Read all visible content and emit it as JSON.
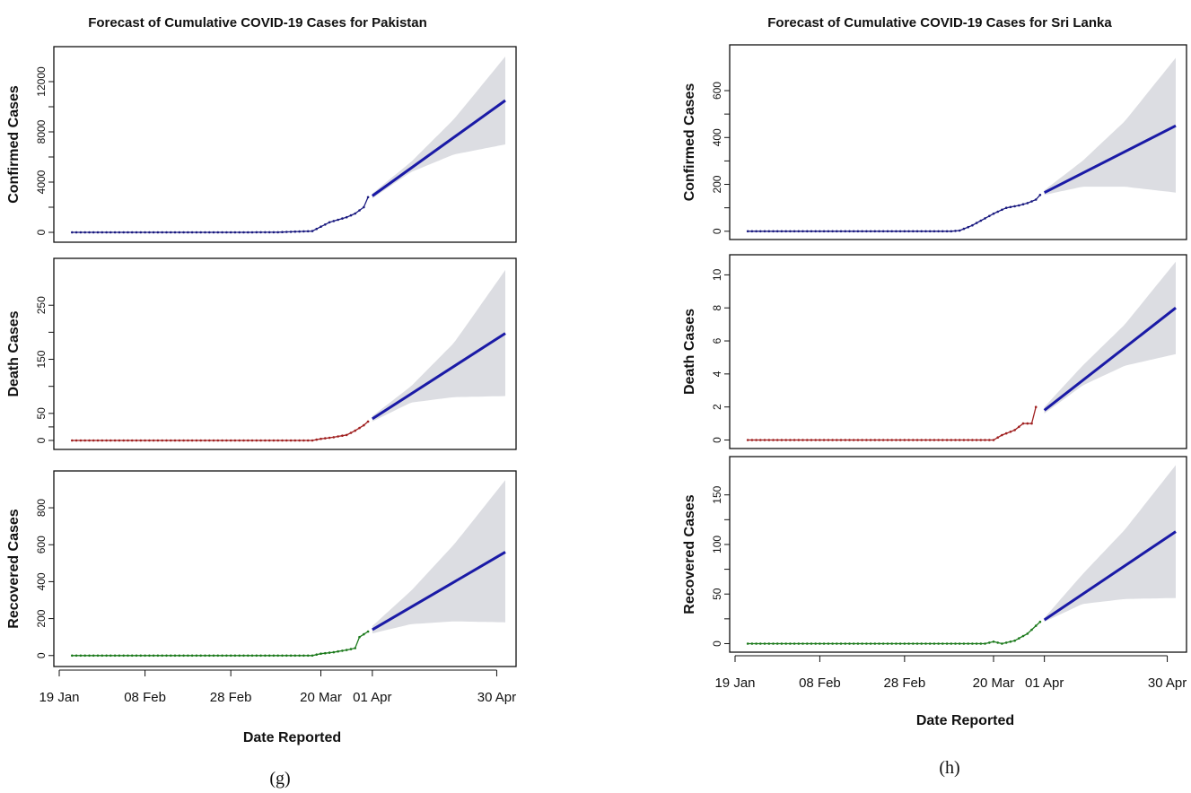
{
  "captions": [
    "(g)",
    "(h)"
  ],
  "chart_data": [
    {
      "type": "line",
      "title": "Forecast of Cumulative COVID-19 Cases for Pakistan",
      "xlabel": "Date Reported",
      "x_ticks": [
        "19 Jan",
        "08 Feb",
        "28 Feb",
        "20 Mar",
        "01 Apr",
        "30 Apr"
      ],
      "xlim": [
        "2020-01-19",
        "2020-05-02"
      ],
      "forecast_start": "2020-04-01",
      "panels": [
        {
          "ylabel": "Confirmed Cases",
          "color": "#1a1a80",
          "forecast_color": "#1a1aa6",
          "band_color": "#dcdde2",
          "ylim": [
            -500,
            14500
          ],
          "y_ticks": [
            0,
            4000,
            8000,
            12000
          ],
          "observed": {
            "x": [
              "2020-01-22",
              "2020-03-01",
              "2020-03-10",
              "2020-03-18",
              "2020-03-20",
              "2020-03-22",
              "2020-03-24",
              "2020-03-26",
              "2020-03-28",
              "2020-03-30",
              "2020-03-31"
            ],
            "y": [
              0,
              0,
              10,
              100,
              450,
              800,
              1000,
              1200,
              1500,
              2000,
              2800
            ]
          },
          "forecast": {
            "x": [
              "2020-04-01",
              "2020-05-02"
            ],
            "y": [
              2900,
              10500
            ]
          },
          "band_upper": {
            "x": [
              "2020-04-01",
              "2020-04-10",
              "2020-04-20",
              "2020-05-02"
            ],
            "y": [
              3100,
              5600,
              9000,
              14000
            ]
          },
          "band_lower": {
            "x": [
              "2020-04-01",
              "2020-04-10",
              "2020-04-20",
              "2020-05-02"
            ],
            "y": [
              2700,
              4800,
              6200,
              7000
            ]
          }
        },
        {
          "ylabel": "Death Cases",
          "color": "#a02020",
          "forecast_color": "#1a1aa6",
          "band_color": "#dcdde2",
          "ylim": [
            -10,
            330
          ],
          "y_ticks": [
            0,
            50,
            150,
            250
          ],
          "observed": {
            "x": [
              "2020-01-22",
              "2020-03-18",
              "2020-03-20",
              "2020-03-23",
              "2020-03-26",
              "2020-03-28",
              "2020-03-30",
              "2020-03-31"
            ],
            "y": [
              0,
              0,
              3,
              6,
              10,
              18,
              28,
              35
            ]
          },
          "forecast": {
            "x": [
              "2020-04-01",
              "2020-05-02"
            ],
            "y": [
              40,
              198
            ]
          },
          "band_upper": {
            "x": [
              "2020-04-01",
              "2020-04-10",
              "2020-04-20",
              "2020-05-02"
            ],
            "y": [
              45,
              100,
              180,
              315
            ]
          },
          "band_lower": {
            "x": [
              "2020-04-01",
              "2020-04-10",
              "2020-04-20",
              "2020-05-02"
            ],
            "y": [
              35,
              70,
              80,
              82
            ]
          }
        },
        {
          "ylabel": "Recovered Cases",
          "color": "#1c7a1c",
          "forecast_color": "#1a1aa6",
          "band_color": "#dcdde2",
          "ylim": [
            -40,
            980
          ],
          "y_ticks": [
            0,
            200,
            400,
            600,
            800
          ],
          "observed": {
            "x": [
              "2020-01-22",
              "2020-03-18",
              "2020-03-20",
              "2020-03-23",
              "2020-03-26",
              "2020-03-28",
              "2020-03-29",
              "2020-03-31"
            ],
            "y": [
              0,
              0,
              10,
              18,
              30,
              40,
              100,
              130
            ]
          },
          "forecast": {
            "x": [
              "2020-04-01",
              "2020-05-02"
            ],
            "y": [
              140,
              560
            ]
          },
          "band_upper": {
            "x": [
              "2020-04-01",
              "2020-04-10",
              "2020-04-20",
              "2020-05-02"
            ],
            "y": [
              160,
              350,
              600,
              950
            ]
          },
          "band_lower": {
            "x": [
              "2020-04-01",
              "2020-04-10",
              "2020-04-20",
              "2020-05-02"
            ],
            "y": [
              120,
              170,
              185,
              180
            ]
          }
        }
      ]
    },
    {
      "type": "line",
      "title": "Forecast of Cumulative COVID-19 Cases for Sri Lanka",
      "xlabel": "Date Reported",
      "x_ticks": [
        "19 Jan",
        "08 Feb",
        "28 Feb",
        "20 Mar",
        "01 Apr",
        "30 Apr"
      ],
      "xlim": [
        "2020-01-19",
        "2020-05-02"
      ],
      "forecast_start": "2020-04-01",
      "panels": [
        {
          "ylabel": "Confirmed Cases",
          "color": "#1a1a80",
          "forecast_color": "#1a1aa6",
          "band_color": "#dcdde2",
          "ylim": [
            -20,
            780
          ],
          "y_ticks": [
            0,
            200,
            400,
            600
          ],
          "observed": {
            "x": [
              "2020-01-22",
              "2020-03-10",
              "2020-03-12",
              "2020-03-15",
              "2020-03-18",
              "2020-03-20",
              "2020-03-23",
              "2020-03-26",
              "2020-03-28",
              "2020-03-30",
              "2020-03-31"
            ],
            "y": [
              0,
              0,
              3,
              25,
              55,
              75,
              100,
              110,
              120,
              135,
              155
            ]
          },
          "forecast": {
            "x": [
              "2020-04-01",
              "2020-05-02"
            ],
            "y": [
              165,
              450
            ]
          },
          "band_upper": {
            "x": [
              "2020-04-01",
              "2020-04-10",
              "2020-04-20",
              "2020-05-02"
            ],
            "y": [
              175,
              300,
              470,
              740
            ]
          },
          "band_lower": {
            "x": [
              "2020-04-01",
              "2020-04-10",
              "2020-04-20",
              "2020-05-02"
            ],
            "y": [
              155,
              190,
              190,
              165
            ]
          }
        },
        {
          "ylabel": "Death Cases",
          "color": "#a02020",
          "forecast_color": "#1a1aa6",
          "band_color": "#dcdde2",
          "ylim": [
            -0.3,
            11
          ],
          "y_ticks": [
            0,
            2,
            4,
            6,
            8,
            10
          ],
          "observed": {
            "x": [
              "2020-01-22",
              "2020-03-20",
              "2020-03-22",
              "2020-03-25",
              "2020-03-27",
              "2020-03-28",
              "2020-03-29",
              "2020-03-30"
            ],
            "y": [
              0,
              0,
              0.3,
              0.6,
              1,
              1,
              1,
              2
            ]
          },
          "forecast": {
            "x": [
              "2020-04-01",
              "2020-05-02"
            ],
            "y": [
              1.8,
              8
            ]
          },
          "band_upper": {
            "x": [
              "2020-04-01",
              "2020-04-10",
              "2020-04-20",
              "2020-05-02"
            ],
            "y": [
              2.0,
              4.5,
              7,
              10.8
            ]
          },
          "band_lower": {
            "x": [
              "2020-04-01",
              "2020-04-10",
              "2020-04-20",
              "2020-05-02"
            ],
            "y": [
              1.6,
              3.3,
              4.5,
              5.2
            ]
          }
        },
        {
          "ylabel": "Recovered Cases",
          "color": "#1c7a1c",
          "forecast_color": "#1a1aa6",
          "band_color": "#dcdde2",
          "ylim": [
            -5,
            185
          ],
          "y_ticks": [
            0,
            50,
            100,
            150
          ],
          "observed": {
            "x": [
              "2020-01-22",
              "2020-03-18",
              "2020-03-20",
              "2020-03-22",
              "2020-03-25",
              "2020-03-28",
              "2020-03-31"
            ],
            "y": [
              0,
              0,
              2,
              0,
              3,
              10,
              22
            ]
          },
          "forecast": {
            "x": [
              "2020-04-01",
              "2020-05-02"
            ],
            "y": [
              24,
              113
            ]
          },
          "band_upper": {
            "x": [
              "2020-04-01",
              "2020-04-10",
              "2020-04-20",
              "2020-05-02"
            ],
            "y": [
              26,
              70,
              115,
              180
            ]
          },
          "band_lower": {
            "x": [
              "2020-04-01",
              "2020-04-10",
              "2020-04-20",
              "2020-05-02"
            ],
            "y": [
              22,
              40,
              45,
              46
            ]
          }
        }
      ]
    }
  ]
}
